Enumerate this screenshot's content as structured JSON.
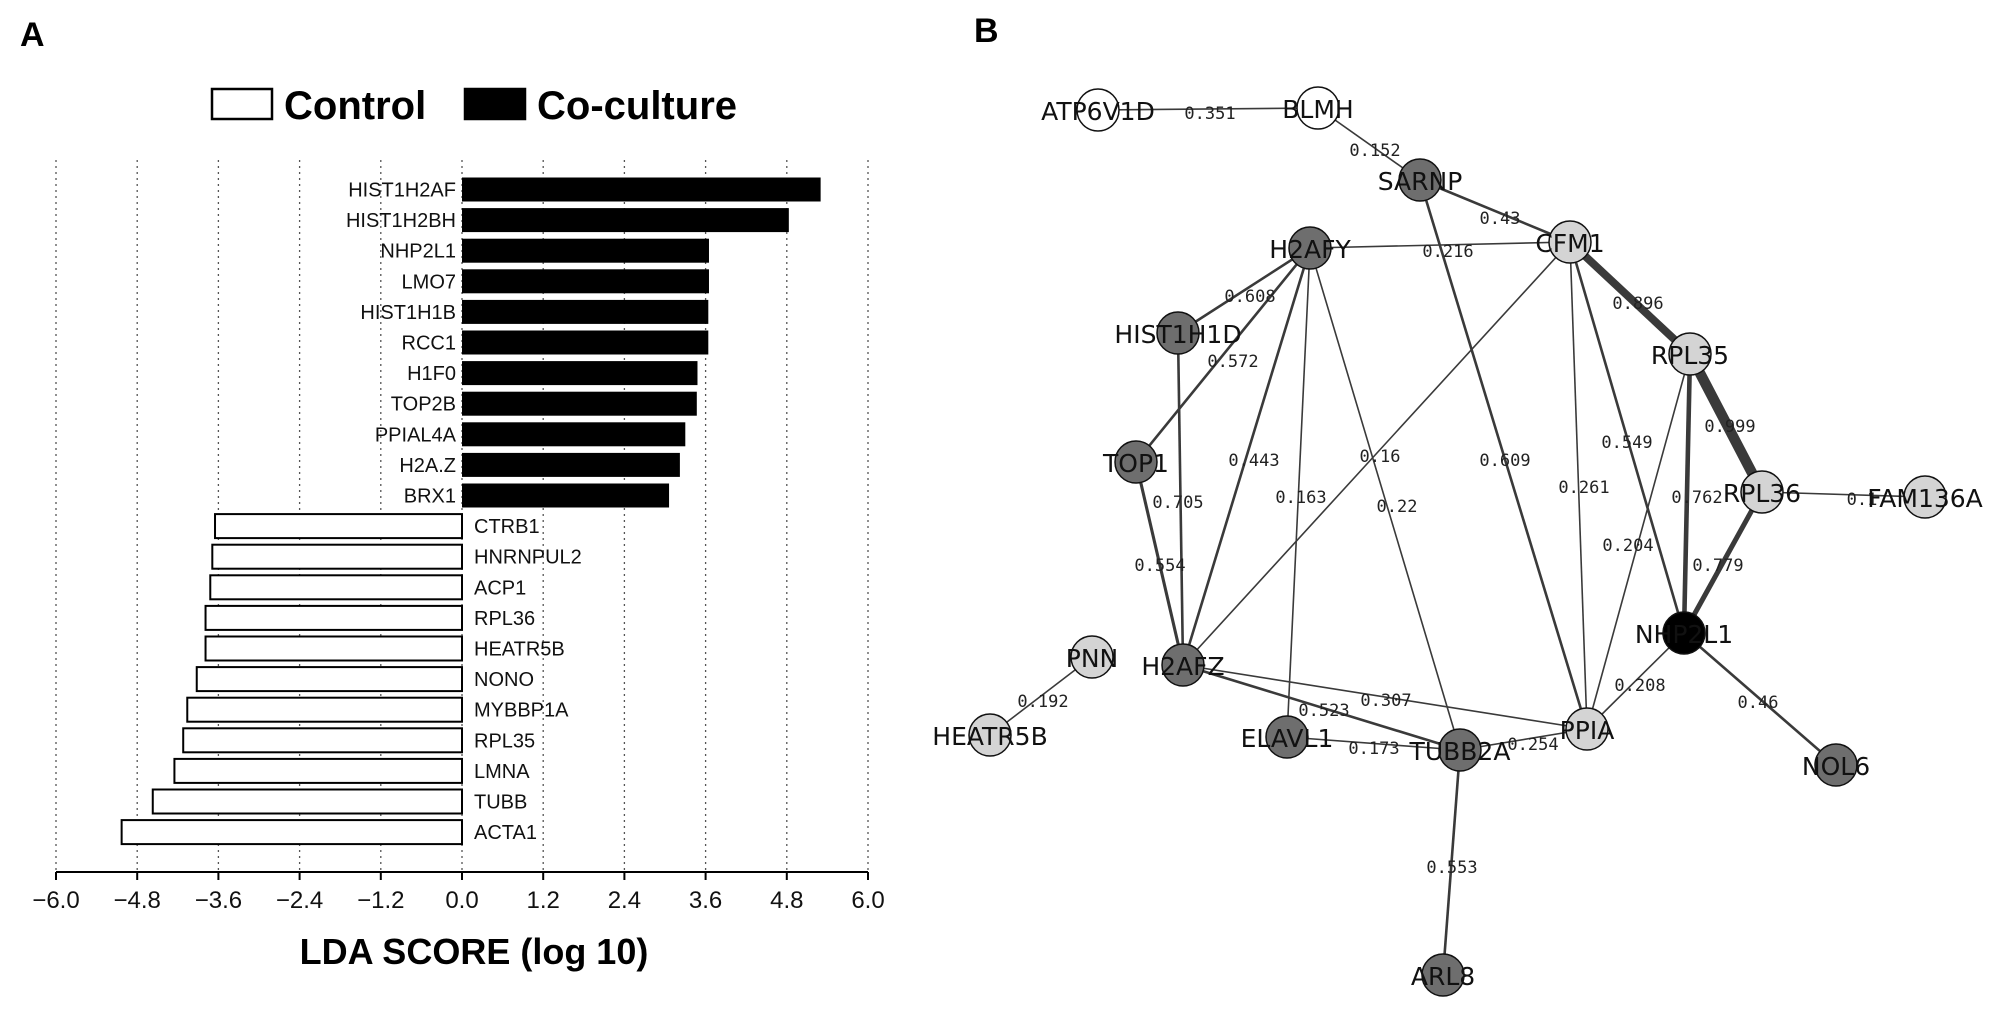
{
  "panels": {
    "a": "A",
    "b": "B"
  },
  "colors": {
    "control": "#ffffff",
    "coculture": "#000000",
    "grid": "#555555",
    "node_dark": "#6e6e6e",
    "node_light": "#d4d4d4",
    "node_white": "#ffffff",
    "node_black": "#000000",
    "edge": "#3a3a3a"
  },
  "chart_data": [
    {
      "type": "bar",
      "orientation": "horizontal",
      "title": "",
      "xlabel": "LDA SCORE (log 10)",
      "ylabel": "",
      "xlim": [
        -6.0,
        6.0
      ],
      "xticks": [
        "−6.0",
        "−4.8",
        "−3.6",
        "−2.4",
        "−1.2",
        "0.0",
        "1.2",
        "2.4",
        "3.6",
        "4.8",
        "6.0"
      ],
      "xtick_values": [
        -6.0,
        -4.8,
        -3.6,
        -2.4,
        -1.2,
        0.0,
        1.2,
        2.4,
        3.6,
        4.8,
        6.0
      ],
      "grid": "vertical dotted",
      "legend": [
        {
          "label": "Control",
          "fill": "white"
        },
        {
          "label": "Co-culture",
          "fill": "black"
        }
      ],
      "legend_position": "top",
      "series": [
        {
          "name": "Co-culture",
          "categories": [
            "HIST1H2AF",
            "HIST1H2BH",
            "NHP2L1",
            "LMO7",
            "HIST1H1B",
            "RCC1",
            "H1F0",
            "TOP2B",
            "PPIAL4A",
            "H2A.Z",
            "BRX1"
          ],
          "values": [
            5.3,
            4.83,
            3.65,
            3.65,
            3.64,
            3.64,
            3.48,
            3.47,
            3.3,
            3.22,
            3.06
          ]
        },
        {
          "name": "Control",
          "categories": [
            "CTRB1",
            "HNRNPUL2",
            "ACP1",
            "RPL36",
            "HEATR5B",
            "NONO",
            "MYBBP1A",
            "RPL35",
            "LMNA",
            "TUBB",
            "ACTA1"
          ],
          "values": [
            -3.65,
            -3.69,
            -3.72,
            -3.79,
            -3.79,
            -3.92,
            -4.06,
            -4.12,
            -4.25,
            -4.57,
            -5.03
          ]
        }
      ]
    },
    {
      "type": "network",
      "nodes": [
        {
          "id": "ATP6V1D",
          "label": "ATP6V1D",
          "shade": "white"
        },
        {
          "id": "BLMH",
          "label": "BLMH",
          "shade": "white"
        },
        {
          "id": "SARNP",
          "label": "SARNP",
          "shade": "dark"
        },
        {
          "id": "CFM1",
          "label": "CFM1",
          "shade": "light"
        },
        {
          "id": "H2AFY",
          "label": "H2AFY",
          "shade": "dark"
        },
        {
          "id": "HIST1H1D",
          "label": "HIST1H1D",
          "shade": "dark"
        },
        {
          "id": "RPL35",
          "label": "RPL35",
          "shade": "light"
        },
        {
          "id": "TOP1",
          "label": "TOP1",
          "shade": "dark"
        },
        {
          "id": "RPL36",
          "label": "RPL36",
          "shade": "light"
        },
        {
          "id": "FAM136A",
          "label": "FAM136A",
          "shade": "light"
        },
        {
          "id": "NHP2L1",
          "label": "NHP2L1",
          "shade": "black"
        },
        {
          "id": "PNN",
          "label": "PNN",
          "shade": "light"
        },
        {
          "id": "H2AFZ",
          "label": "H2AFZ",
          "shade": "dark"
        },
        {
          "id": "HEATR5B",
          "label": "HEATR5B",
          "shade": "light"
        },
        {
          "id": "ELAVL1",
          "label": "ELAVL1",
          "shade": "dark"
        },
        {
          "id": "TUBB2A",
          "label": "TUBB2A",
          "shade": "dark"
        },
        {
          "id": "PPIA",
          "label": "PPIA",
          "shade": "light"
        },
        {
          "id": "NOL6",
          "label": "NOL6",
          "shade": "dark"
        },
        {
          "id": "ARL8",
          "label": "ARL8",
          "shade": "dark"
        }
      ],
      "edges": [
        {
          "source": "ATP6V1D",
          "target": "BLMH",
          "weight": "0.351"
        },
        {
          "source": "BLMH",
          "target": "SARNP",
          "weight": "0.152"
        },
        {
          "source": "SARNP",
          "target": "CFM1",
          "weight": "0.43"
        },
        {
          "source": "H2AFY",
          "target": "CFM1",
          "weight": "0.216"
        },
        {
          "source": "CFM1",
          "target": "RPL35",
          "weight": "0.896"
        },
        {
          "source": "H2AFY",
          "target": "HIST1H1D",
          "weight": "0.608"
        },
        {
          "source": "H2AFY",
          "target": "TOP1",
          "weight": "0.572"
        },
        {
          "source": "RPL35",
          "target": "RPL36",
          "weight": "0.999"
        },
        {
          "source": "CFM1",
          "target": "NHP2L1",
          "weight": "0.549"
        },
        {
          "source": "H2AFY",
          "target": "H2AFZ",
          "weight": "0.443"
        },
        {
          "source": "CFM1",
          "target": "H2AFZ",
          "weight": "0.16"
        },
        {
          "source": "H2AFY",
          "target": "ELAVL1",
          "weight": "0.163"
        },
        {
          "source": "H2AFY",
          "target": "TUBB2A",
          "weight": "0.22"
        },
        {
          "source": "SARNP",
          "target": "PPIA",
          "weight": "0.609"
        },
        {
          "source": "CFM1",
          "target": "PPIA",
          "weight": "0.261"
        },
        {
          "source": "RPL36",
          "target": "FAM136A",
          "weight": "0.1"
        },
        {
          "source": "RPL35",
          "target": "NHP2L1",
          "weight": "0.762"
        },
        {
          "source": "TOP1",
          "target": "H2AFZ",
          "weight": "0.705"
        },
        {
          "source": "RPL35",
          "target": "PPIA",
          "weight": "0.204"
        },
        {
          "source": "RPL36",
          "target": "NHP2L1",
          "weight": "0.779"
        },
        {
          "source": "HIST1H1D",
          "target": "H2AFZ",
          "weight": "0.554"
        },
        {
          "source": "NHP2L1",
          "target": "PPIA",
          "weight": "0.208"
        },
        {
          "source": "NHP2L1",
          "target": "NOL6",
          "weight": "0.46"
        },
        {
          "source": "PNN",
          "target": "HEATR5B",
          "weight": "0.192"
        },
        {
          "source": "H2AFZ",
          "target": "PPIA",
          "weight": "0.307"
        },
        {
          "source": "H2AFZ",
          "target": "TUBB2A",
          "weight": "0.523"
        },
        {
          "source": "ELAVL1",
          "target": "TUBB2A",
          "weight": "0.173"
        },
        {
          "source": "TUBB2A",
          "target": "PPIA",
          "weight": "0.254"
        },
        {
          "source": "TUBB2A",
          "target": "ARL8",
          "weight": "0.553"
        }
      ]
    }
  ]
}
